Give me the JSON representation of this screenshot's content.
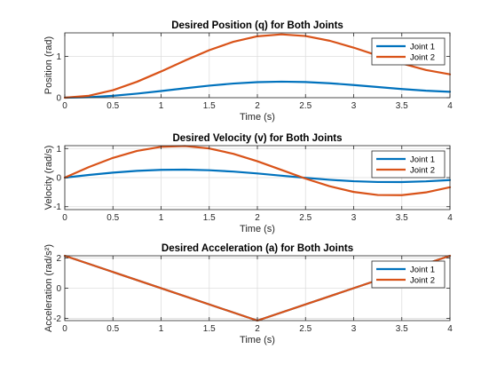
{
  "chart_data": [
    {
      "type": "line",
      "title": "Desired Position (q) for Both Joints",
      "xlabel": "Time (s)",
      "ylabel": "Position (rad)",
      "xlim": [
        0,
        4
      ],
      "ylim": [
        0,
        1.5708
      ],
      "xticks": [
        0,
        0.5,
        1,
        1.5,
        2,
        2.5,
        3,
        3.5,
        4
      ],
      "xtick_labels": [
        "0",
        "0.5",
        "1",
        "1.5",
        "2",
        "2.5",
        "3",
        "3.5",
        "4"
      ],
      "yticks": [
        0,
        1
      ],
      "ytick_labels": [
        "0",
        "1"
      ],
      "grid": true,
      "legend": "top-right",
      "x": [
        0,
        0.25,
        0.5,
        0.75,
        1,
        1.25,
        1.5,
        1.75,
        2,
        2.25,
        2.5,
        2.75,
        3,
        3.25,
        3.5,
        3.75,
        4
      ],
      "series": [
        {
          "name": "Joint 1",
          "color": "#0072BD",
          "values": [
            0,
            0.0119,
            0.046,
            0.0978,
            0.1612,
            0.2286,
            0.2919,
            0.3433,
            0.377,
            0.3889,
            0.3786,
            0.3497,
            0.3073,
            0.2585,
            0.2103,
            0.17,
            0.1433
          ]
        },
        {
          "name": "Joint 2",
          "color": "#D95319",
          "values": [
            0,
            0.047,
            0.1817,
            0.386,
            0.6361,
            0.9022,
            1.1517,
            1.355,
            1.4877,
            1.5346,
            1.4939,
            1.3799,
            1.2127,
            1.0201,
            0.8298,
            0.6709,
            0.5656
          ]
        }
      ]
    },
    {
      "type": "line",
      "title": "Desired Velocity (v) for Both Joints",
      "xlabel": "Time (s)",
      "ylabel": "Velocity (rad/s)",
      "xlim": [
        0,
        4
      ],
      "ylim": [
        -1.1,
        1.1
      ],
      "xticks": [
        0,
        0.5,
        1,
        1.5,
        2,
        2.5,
        3,
        3.5,
        4
      ],
      "xtick_labels": [
        "0",
        "0.5",
        "1",
        "1.5",
        "2",
        "2.5",
        "3",
        "3.5",
        "4"
      ],
      "yticks": [
        -1,
        0,
        1
      ],
      "ytick_labels": [
        "-1",
        "0",
        "1"
      ],
      "grid": true,
      "legend": "top-right",
      "x": [
        0,
        0.25,
        0.5,
        0.75,
        1,
        1.25,
        1.5,
        1.75,
        2,
        2.25,
        2.5,
        2.75,
        3,
        3.25,
        3.5,
        3.75,
        4
      ],
      "series": [
        {
          "name": "Joint 1",
          "color": "#0072BD",
          "values": [
            0,
            0.0916,
            0.1719,
            0.2328,
            0.2682,
            0.2752,
            0.2539,
            0.2076,
            0.1426,
            0.0671,
            -0.0087,
            -0.0753,
            -0.1248,
            -0.1514,
            -0.1525,
            -0.1287,
            -0.0839
          ]
        },
        {
          "name": "Joint 2",
          "color": "#D95319",
          "values": [
            0,
            0.3619,
            0.679,
            0.9196,
            1.0593,
            1.0873,
            1.0029,
            0.82,
            0.5633,
            0.265,
            -0.0342,
            -0.2974,
            -0.4929,
            -0.5983,
            -0.6025,
            -0.5085,
            -0.3316
          ]
        }
      ]
    },
    {
      "type": "line",
      "title": "Desired Acceleration (a) for Both Joints",
      "xlabel": "Time (s)",
      "ylabel": "Acceleration (rad/s²)",
      "xlim": [
        0,
        4
      ],
      "ylim": [
        -2.15,
        2.15
      ],
      "xticks": [
        0,
        0.5,
        1,
        1.5,
        2,
        2.5,
        3,
        3.5,
        4
      ],
      "xtick_labels": [
        "0",
        "0.5",
        "1",
        "1.5",
        "2",
        "2.5",
        "3",
        "3.5",
        "4"
      ],
      "yticks": [
        -2,
        0,
        2
      ],
      "ytick_labels": [
        "-2",
        "0",
        "2"
      ],
      "grid": true,
      "legend": "top-right",
      "x": [
        0,
        2,
        4
      ],
      "series": [
        {
          "name": "Joint 1",
          "color": "#0072BD",
          "values": [
            2.15,
            -2.15,
            2.15
          ]
        },
        {
          "name": "Joint 2",
          "color": "#D95319",
          "values": [
            2.15,
            -2.15,
            2.15
          ]
        }
      ]
    }
  ]
}
